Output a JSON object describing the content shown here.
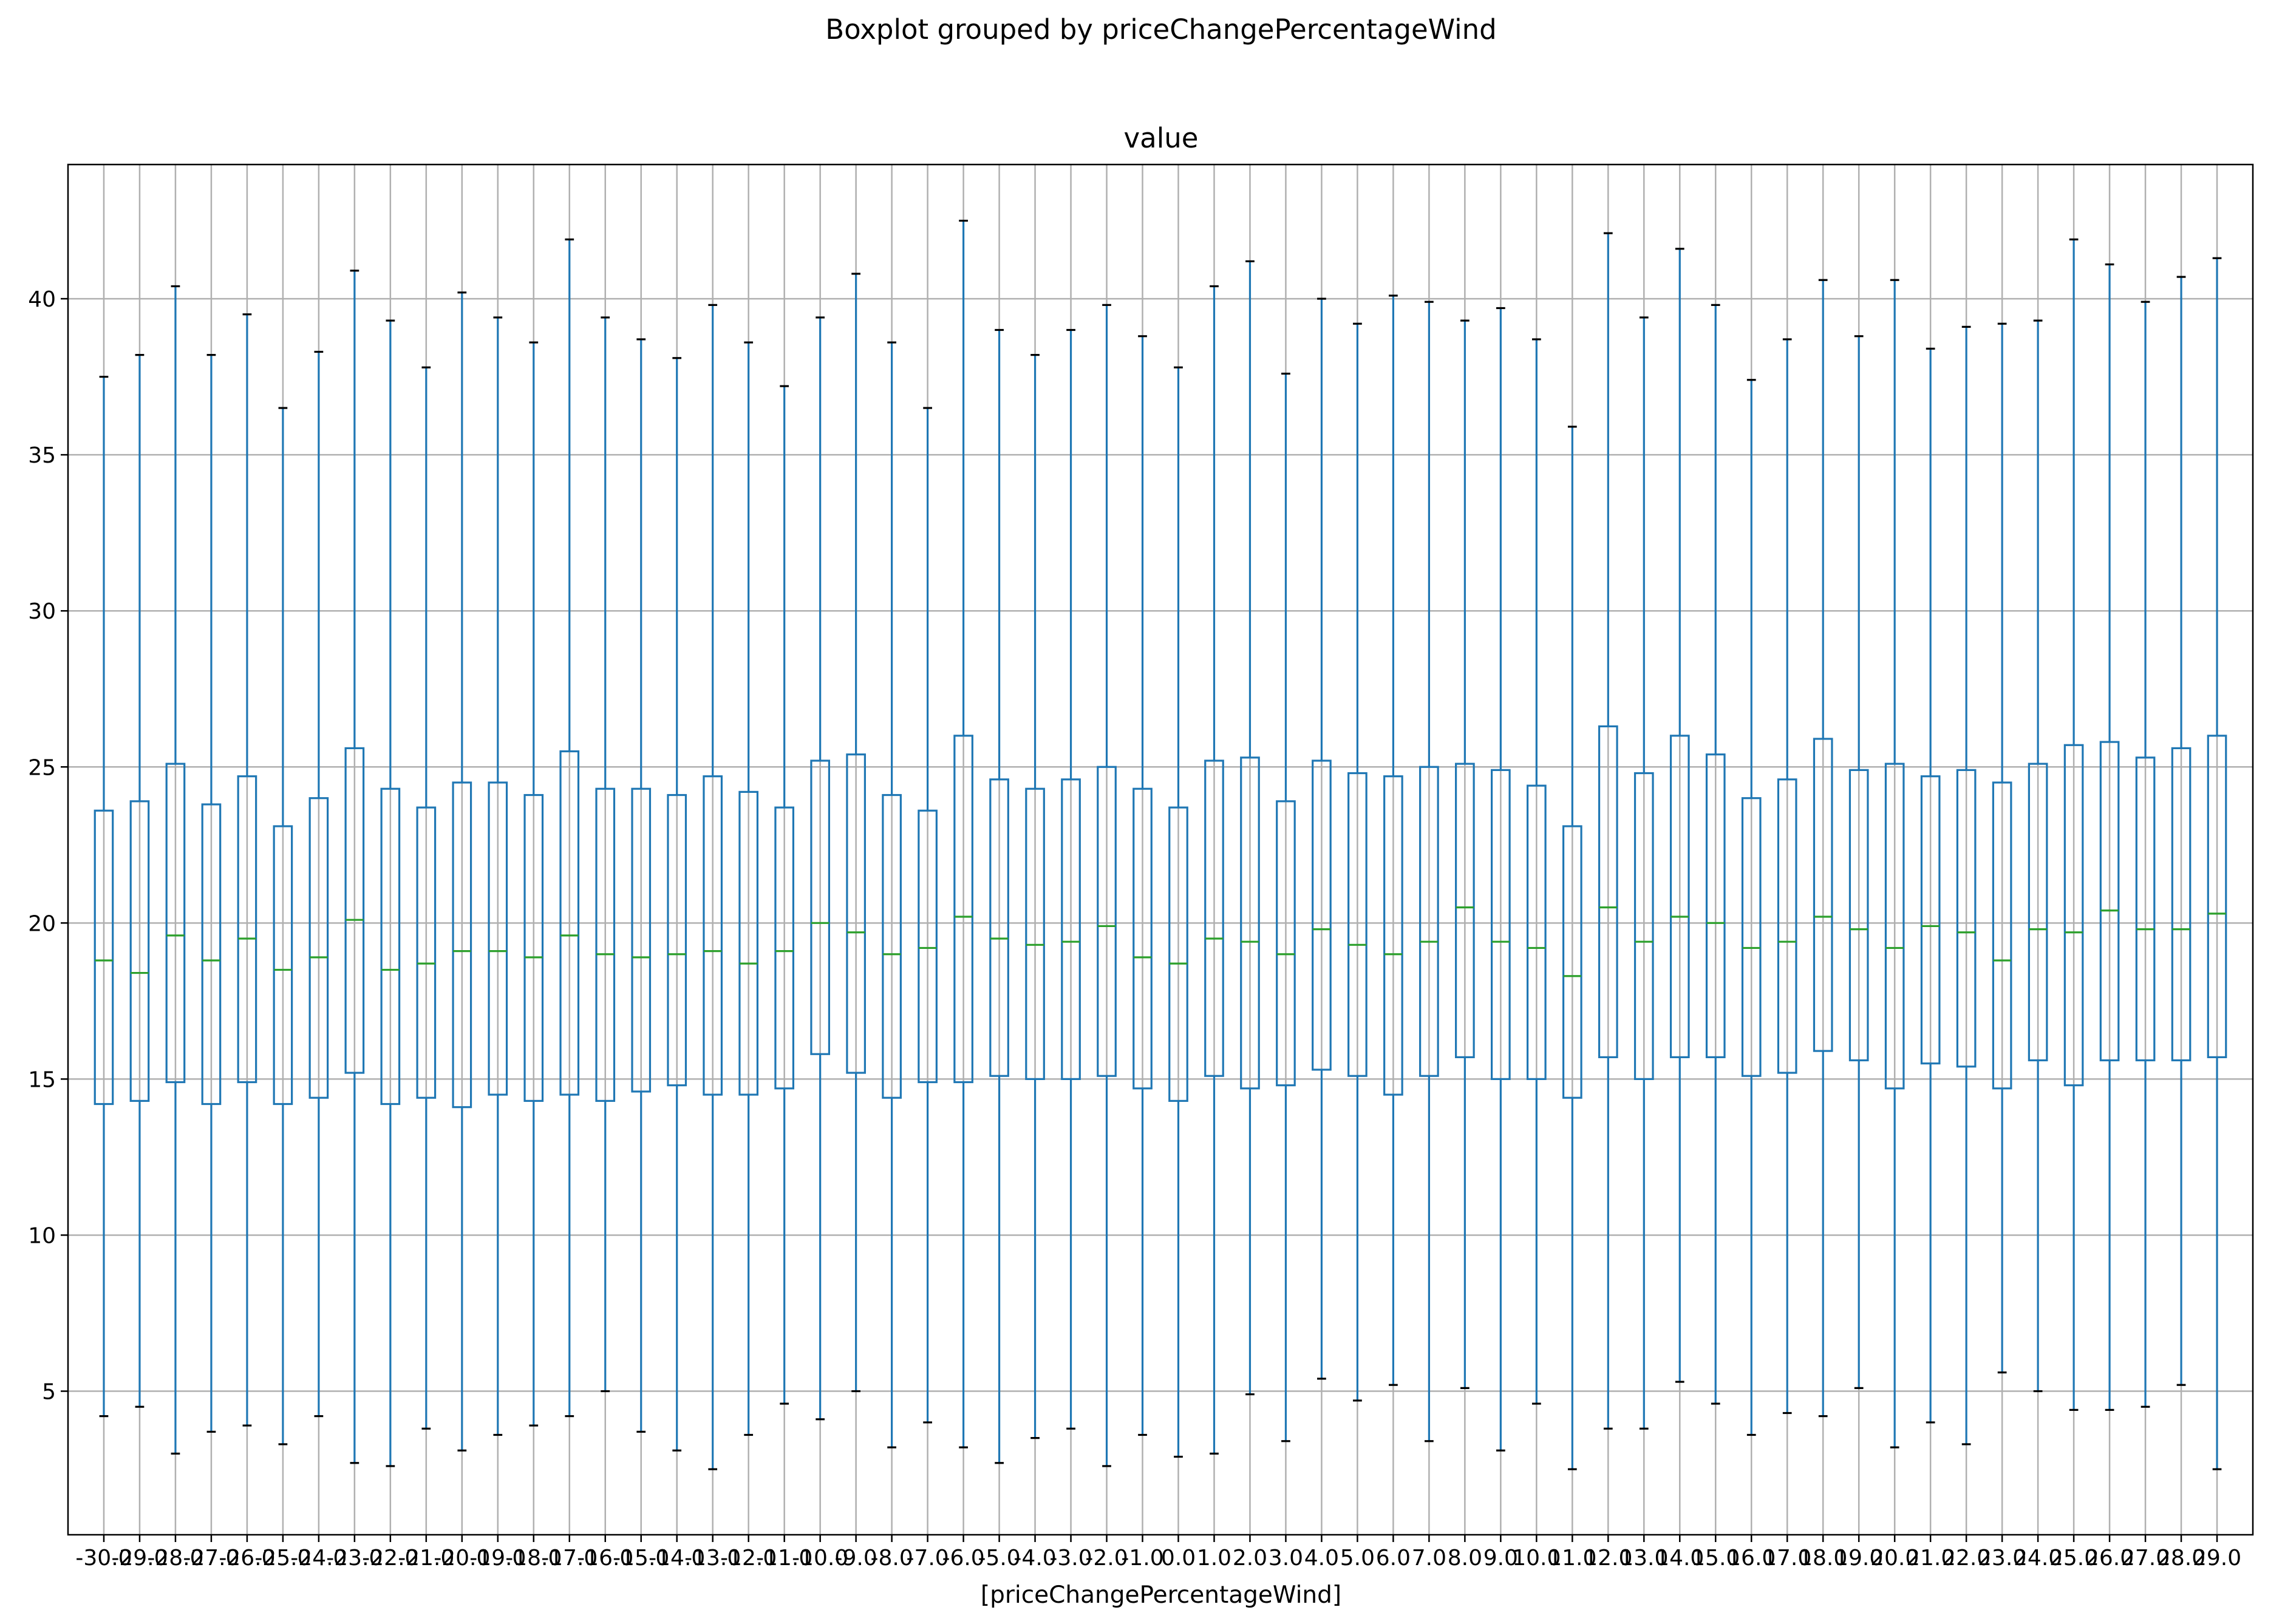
{
  "chart_data": {
    "type": "boxplot",
    "suptitle": "Boxplot grouped by priceChangePercentageWind",
    "title": "value",
    "xlabel": "[priceChangePercentageWind]",
    "ylabel": "",
    "ylim": [
      0.4,
      44.3
    ],
    "yticks": [
      5,
      10,
      15,
      20,
      25,
      30,
      35,
      40
    ],
    "grid": true,
    "box_color": "#1f77b4",
    "median_color": "#2ca02c",
    "categories": [
      "-30.0",
      "-29.0",
      "-28.0",
      "-27.0",
      "-26.0",
      "-25.0",
      "-24.0",
      "-23.0",
      "-22.0",
      "-21.0",
      "-20.0",
      "-19.0",
      "-18.0",
      "-17.0",
      "-16.0",
      "-15.0",
      "-14.0",
      "-13.0",
      "-12.0",
      "-11.0",
      "-10.0",
      "-9.0",
      "-8.0",
      "-7.0",
      "-6.0",
      "-5.0",
      "-4.0",
      "-3.0",
      "-2.0",
      "-1.0",
      "0.0",
      "1.0",
      "2.0",
      "3.0",
      "4.0",
      "5.0",
      "6.0",
      "7.0",
      "8.0",
      "9.0",
      "10.0",
      "11.0",
      "12.0",
      "13.0",
      "14.0",
      "15.0",
      "16.0",
      "17.0",
      "18.0",
      "19.0",
      "20.0",
      "21.0",
      "22.0",
      "23.0",
      "24.0",
      "25.0",
      "26.0",
      "27.0",
      "28.0",
      "29.0"
    ],
    "boxes": [
      {
        "whislo": 4.2,
        "q1": 14.2,
        "med": 18.8,
        "q3": 23.6,
        "whishi": 37.5
      },
      {
        "whislo": 4.5,
        "q1": 14.3,
        "med": 18.4,
        "q3": 23.9,
        "whishi": 38.2
      },
      {
        "whislo": 3.0,
        "q1": 14.9,
        "med": 19.6,
        "q3": 25.1,
        "whishi": 40.4
      },
      {
        "whislo": 3.7,
        "q1": 14.2,
        "med": 18.8,
        "q3": 23.8,
        "whishi": 38.2
      },
      {
        "whislo": 3.9,
        "q1": 14.9,
        "med": 19.5,
        "q3": 24.7,
        "whishi": 39.5
      },
      {
        "whislo": 3.3,
        "q1": 14.2,
        "med": 18.5,
        "q3": 23.1,
        "whishi": 36.5
      },
      {
        "whislo": 4.2,
        "q1": 14.4,
        "med": 18.9,
        "q3": 24.0,
        "whishi": 38.3
      },
      {
        "whislo": 2.7,
        "q1": 15.2,
        "med": 20.1,
        "q3": 25.6,
        "whishi": 40.9
      },
      {
        "whislo": 2.6,
        "q1": 14.2,
        "med": 18.5,
        "q3": 24.3,
        "whishi": 39.3
      },
      {
        "whislo": 3.8,
        "q1": 14.4,
        "med": 18.7,
        "q3": 23.7,
        "whishi": 37.8
      },
      {
        "whislo": 3.1,
        "q1": 14.1,
        "med": 19.1,
        "q3": 24.5,
        "whishi": 40.2
      },
      {
        "whislo": 3.6,
        "q1": 14.5,
        "med": 19.1,
        "q3": 24.5,
        "whishi": 39.4
      },
      {
        "whislo": 3.9,
        "q1": 14.3,
        "med": 18.9,
        "q3": 24.1,
        "whishi": 38.6
      },
      {
        "whislo": 4.2,
        "q1": 14.5,
        "med": 19.6,
        "q3": 25.5,
        "whishi": 41.9
      },
      {
        "whislo": 5.0,
        "q1": 14.3,
        "med": 19.0,
        "q3": 24.3,
        "whishi": 39.4
      },
      {
        "whislo": 3.7,
        "q1": 14.6,
        "med": 18.9,
        "q3": 24.3,
        "whishi": 38.7
      },
      {
        "whislo": 3.1,
        "q1": 14.8,
        "med": 19.0,
        "q3": 24.1,
        "whishi": 38.1
      },
      {
        "whislo": 2.5,
        "q1": 14.5,
        "med": 19.1,
        "q3": 24.7,
        "whishi": 39.8
      },
      {
        "whislo": 3.6,
        "q1": 14.5,
        "med": 18.7,
        "q3": 24.2,
        "whishi": 38.6
      },
      {
        "whislo": 4.6,
        "q1": 14.7,
        "med": 19.1,
        "q3": 23.7,
        "whishi": 37.2
      },
      {
        "whislo": 4.1,
        "q1": 15.8,
        "med": 20.0,
        "q3": 25.2,
        "whishi": 39.4
      },
      {
        "whislo": 5.0,
        "q1": 15.2,
        "med": 19.7,
        "q3": 25.4,
        "whishi": 40.8
      },
      {
        "whislo": 3.2,
        "q1": 14.4,
        "med": 19.0,
        "q3": 24.1,
        "whishi": 38.6
      },
      {
        "whislo": 4.0,
        "q1": 14.9,
        "med": 19.2,
        "q3": 23.6,
        "whishi": 36.5
      },
      {
        "whislo": 3.2,
        "q1": 14.9,
        "med": 20.2,
        "q3": 26.0,
        "whishi": 42.5
      },
      {
        "whislo": 2.7,
        "q1": 15.1,
        "med": 19.5,
        "q3": 24.6,
        "whishi": 39.0
      },
      {
        "whislo": 3.5,
        "q1": 15.0,
        "med": 19.3,
        "q3": 24.3,
        "whishi": 38.2
      },
      {
        "whislo": 3.8,
        "q1": 15.0,
        "med": 19.4,
        "q3": 24.6,
        "whishi": 39.0
      },
      {
        "whislo": 2.6,
        "q1": 15.1,
        "med": 19.9,
        "q3": 25.0,
        "whishi": 39.8
      },
      {
        "whislo": 3.6,
        "q1": 14.7,
        "med": 18.9,
        "q3": 24.3,
        "whishi": 38.8
      },
      {
        "whislo": 2.9,
        "q1": 14.3,
        "med": 18.7,
        "q3": 23.7,
        "whishi": 37.8
      },
      {
        "whislo": 3.0,
        "q1": 15.1,
        "med": 19.5,
        "q3": 25.2,
        "whishi": 40.4
      },
      {
        "whislo": 4.9,
        "q1": 14.7,
        "med": 19.4,
        "q3": 25.3,
        "whishi": 41.2
      },
      {
        "whislo": 3.4,
        "q1": 14.8,
        "med": 19.0,
        "q3": 23.9,
        "whishi": 37.6
      },
      {
        "whislo": 5.4,
        "q1": 15.3,
        "med": 19.8,
        "q3": 25.2,
        "whishi": 40.0
      },
      {
        "whislo": 4.7,
        "q1": 15.1,
        "med": 19.3,
        "q3": 24.8,
        "whishi": 39.2
      },
      {
        "whislo": 5.2,
        "q1": 14.5,
        "med": 19.0,
        "q3": 24.7,
        "whishi": 40.1
      },
      {
        "whislo": 3.4,
        "q1": 15.1,
        "med": 19.4,
        "q3": 25.0,
        "whishi": 39.9
      },
      {
        "whislo": 5.1,
        "q1": 15.7,
        "med": 20.5,
        "q3": 25.1,
        "whishi": 39.3
      },
      {
        "whislo": 3.1,
        "q1": 15.0,
        "med": 19.4,
        "q3": 24.9,
        "whishi": 39.7
      },
      {
        "whislo": 4.6,
        "q1": 15.0,
        "med": 19.2,
        "q3": 24.4,
        "whishi": 38.7
      },
      {
        "whislo": 2.5,
        "q1": 14.4,
        "med": 18.3,
        "q3": 23.1,
        "whishi": 35.9
      },
      {
        "whislo": 3.8,
        "q1": 15.7,
        "med": 20.5,
        "q3": 26.3,
        "whishi": 42.1
      },
      {
        "whislo": 3.8,
        "q1": 15.0,
        "med": 19.4,
        "q3": 24.8,
        "whishi": 39.4
      },
      {
        "whislo": 5.3,
        "q1": 15.7,
        "med": 20.2,
        "q3": 26.0,
        "whishi": 41.6
      },
      {
        "whislo": 4.6,
        "q1": 15.7,
        "med": 20.0,
        "q3": 25.4,
        "whishi": 39.8
      },
      {
        "whislo": 3.6,
        "q1": 15.1,
        "med": 19.2,
        "q3": 24.0,
        "whishi": 37.4
      },
      {
        "whislo": 4.3,
        "q1": 15.2,
        "med": 19.4,
        "q3": 24.6,
        "whishi": 38.7
      },
      {
        "whislo": 4.2,
        "q1": 15.9,
        "med": 20.2,
        "q3": 25.9,
        "whishi": 40.6
      },
      {
        "whislo": 5.1,
        "q1": 15.6,
        "med": 19.8,
        "q3": 24.9,
        "whishi": 38.8
      },
      {
        "whislo": 3.2,
        "q1": 14.7,
        "med": 19.2,
        "q3": 25.1,
        "whishi": 40.6
      },
      {
        "whislo": 4.0,
        "q1": 15.5,
        "med": 19.9,
        "q3": 24.7,
        "whishi": 38.4
      },
      {
        "whislo": 3.3,
        "q1": 15.4,
        "med": 19.7,
        "q3": 24.9,
        "whishi": 39.1
      },
      {
        "whislo": 5.6,
        "q1": 14.7,
        "med": 18.8,
        "q3": 24.5,
        "whishi": 39.2
      },
      {
        "whislo": 5.0,
        "q1": 15.6,
        "med": 19.8,
        "q3": 25.1,
        "whishi": 39.3
      },
      {
        "whislo": 4.4,
        "q1": 14.8,
        "med": 19.7,
        "q3": 25.7,
        "whishi": 41.9
      },
      {
        "whislo": 4.4,
        "q1": 15.6,
        "med": 20.4,
        "q3": 25.8,
        "whishi": 41.1
      },
      {
        "whislo": 4.5,
        "q1": 15.6,
        "med": 19.8,
        "q3": 25.3,
        "whishi": 39.9
      },
      {
        "whislo": 5.2,
        "q1": 15.6,
        "med": 19.8,
        "q3": 25.6,
        "whishi": 40.7
      },
      {
        "whislo": 2.5,
        "q1": 15.7,
        "med": 20.3,
        "q3": 26.0,
        "whishi": 41.3
      }
    ]
  }
}
